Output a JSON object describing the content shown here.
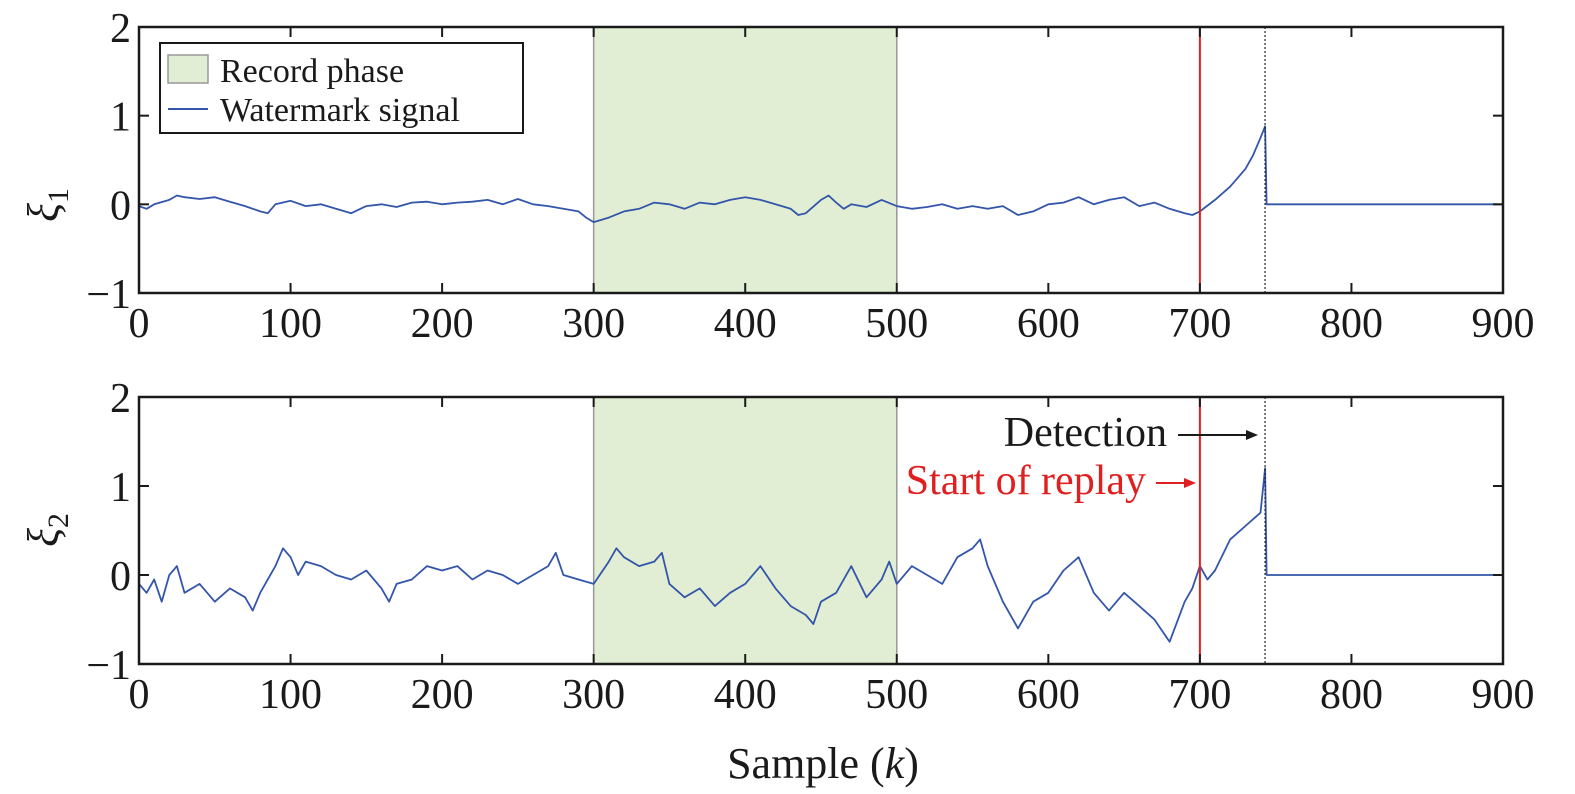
{
  "chart_data": {
    "type": "line",
    "xlabel": "Sample (k)",
    "xlim": [
      0,
      900
    ],
    "x_ticks": [
      "0",
      "100",
      "200",
      "300",
      "400",
      "500",
      "600",
      "700",
      "800",
      "900"
    ],
    "grid": false,
    "legend": {
      "placement": "top-left",
      "entries": [
        "Record phase",
        "Watermark signal"
      ]
    },
    "record_phase": [
      300,
      500
    ],
    "start_of_replay": 700,
    "detection": 743,
    "colors": {
      "signal": "#3355aa",
      "record_phase_fill": "#e2eed3",
      "record_phase_edge": "#999999",
      "replay_line": "#e02020",
      "detection_line": "#222222"
    },
    "annotations": {
      "detection": "Detection",
      "start_of_replay": "Start of replay"
    },
    "panels": [
      {
        "ylabel_symbol": "ξ",
        "ylabel_subscript": "1",
        "ylim": [
          -1,
          2
        ],
        "y_ticks": [
          "2",
          "1",
          "0",
          "−1"
        ],
        "series": {
          "name": "Watermark signal",
          "x": [
            0,
            5,
            10,
            20,
            25,
            30,
            40,
            50,
            60,
            70,
            80,
            85,
            90,
            100,
            110,
            120,
            130,
            140,
            150,
            160,
            170,
            180,
            190,
            200,
            210,
            220,
            230,
            240,
            250,
            260,
            270,
            280,
            290,
            295,
            300,
            310,
            320,
            330,
            340,
            350,
            360,
            370,
            380,
            390,
            400,
            410,
            420,
            430,
            435,
            440,
            450,
            455,
            460,
            465,
            470,
            480,
            490,
            500,
            510,
            520,
            530,
            540,
            550,
            560,
            570,
            580,
            590,
            600,
            610,
            620,
            630,
            640,
            650,
            660,
            670,
            680,
            690,
            695,
            700,
            710,
            720,
            730,
            735,
            740,
            743,
            744,
            760,
            800,
            850,
            900
          ],
          "y": [
            -0.02,
            -0.05,
            0.0,
            0.05,
            0.1,
            0.08,
            0.06,
            0.08,
            0.03,
            -0.02,
            -0.08,
            -0.1,
            0.0,
            0.04,
            -0.02,
            0.0,
            -0.05,
            -0.1,
            -0.02,
            0.0,
            -0.03,
            0.02,
            0.03,
            0.0,
            0.02,
            0.03,
            0.05,
            0.0,
            0.06,
            0.0,
            -0.02,
            -0.05,
            -0.08,
            -0.15,
            -0.2,
            -0.15,
            -0.08,
            -0.05,
            0.02,
            0.0,
            -0.05,
            0.02,
            0.0,
            0.05,
            0.08,
            0.05,
            0.0,
            -0.05,
            -0.12,
            -0.1,
            0.05,
            0.1,
            0.02,
            -0.05,
            0.0,
            -0.03,
            0.05,
            -0.02,
            -0.05,
            -0.03,
            0.0,
            -0.05,
            -0.02,
            -0.05,
            -0.02,
            -0.12,
            -0.08,
            0.0,
            0.02,
            0.08,
            0.0,
            0.05,
            0.08,
            -0.02,
            0.02,
            -0.05,
            -0.1,
            -0.12,
            -0.08,
            0.05,
            0.2,
            0.4,
            0.55,
            0.75,
            0.88,
            0.0,
            0.0,
            0.0,
            0.0,
            0.0
          ]
        }
      },
      {
        "ylabel_symbol": "ξ",
        "ylabel_subscript": "2",
        "ylim": [
          -1,
          2
        ],
        "y_ticks": [
          "2",
          "1",
          "0",
          "−1"
        ],
        "series": {
          "name": "Watermark signal",
          "x": [
            0,
            5,
            10,
            15,
            20,
            25,
            30,
            40,
            50,
            60,
            70,
            75,
            80,
            90,
            95,
            100,
            105,
            110,
            120,
            130,
            140,
            150,
            160,
            165,
            170,
            180,
            190,
            200,
            210,
            220,
            230,
            240,
            250,
            260,
            270,
            275,
            280,
            290,
            300,
            310,
            315,
            320,
            330,
            340,
            345,
            350,
            360,
            370,
            380,
            390,
            400,
            410,
            420,
            430,
            440,
            445,
            450,
            460,
            470,
            480,
            490,
            495,
            500,
            510,
            520,
            530,
            540,
            550,
            555,
            560,
            570,
            580,
            590,
            600,
            610,
            620,
            630,
            640,
            650,
            660,
            670,
            680,
            690,
            695,
            700,
            705,
            710,
            720,
            730,
            740,
            743,
            744,
            760,
            800,
            850,
            900
          ],
          "y": [
            -0.1,
            -0.2,
            -0.05,
            -0.3,
            0.0,
            0.1,
            -0.2,
            -0.1,
            -0.3,
            -0.15,
            -0.25,
            -0.4,
            -0.2,
            0.1,
            0.3,
            0.2,
            0.0,
            0.15,
            0.1,
            0.0,
            -0.05,
            0.05,
            -0.15,
            -0.3,
            -0.1,
            -0.05,
            0.1,
            0.05,
            0.1,
            -0.05,
            0.05,
            0.0,
            -0.1,
            0.0,
            0.1,
            0.25,
            0.0,
            -0.05,
            -0.1,
            0.15,
            0.3,
            0.2,
            0.1,
            0.15,
            0.25,
            -0.1,
            -0.25,
            -0.15,
            -0.35,
            -0.2,
            -0.1,
            0.1,
            -0.15,
            -0.35,
            -0.45,
            -0.55,
            -0.3,
            -0.2,
            0.1,
            -0.25,
            -0.05,
            0.15,
            -0.1,
            0.1,
            0.0,
            -0.1,
            0.2,
            0.3,
            0.4,
            0.1,
            -0.3,
            -0.6,
            -0.3,
            -0.2,
            0.05,
            0.2,
            -0.2,
            -0.4,
            -0.2,
            -0.35,
            -0.5,
            -0.75,
            -0.3,
            -0.15,
            0.1,
            -0.05,
            0.05,
            0.4,
            0.55,
            0.7,
            1.2,
            0.0,
            0.0,
            0.0,
            0.0,
            0.0
          ]
        }
      }
    ]
  }
}
